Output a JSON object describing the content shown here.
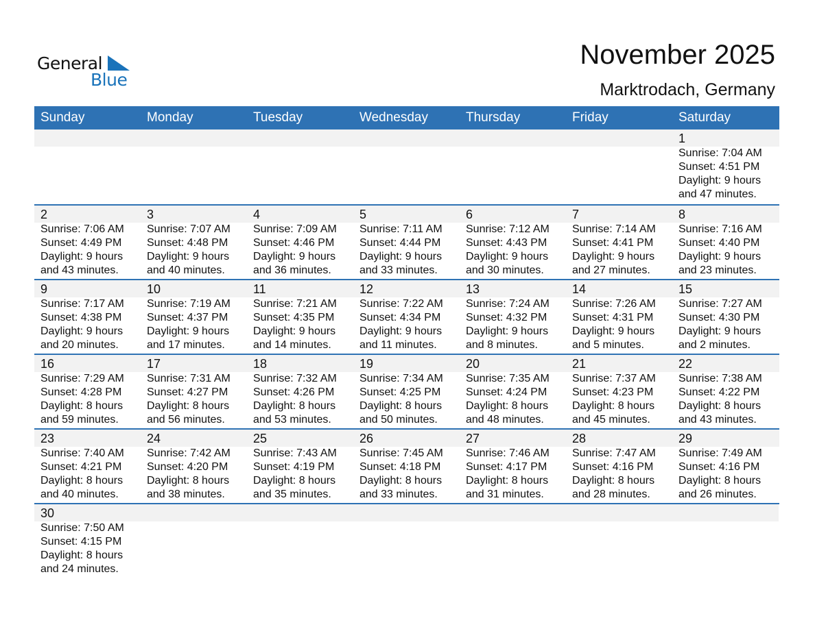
{
  "logo": {
    "text1": "General",
    "text2": "Blue",
    "color": "#1a73ba"
  },
  "title": "November 2025",
  "location": "Marktrodach, Germany",
  "weekdays": [
    "Sunday",
    "Monday",
    "Tuesday",
    "Wednesday",
    "Thursday",
    "Friday",
    "Saturday"
  ],
  "colors": {
    "header": "#2e72b4",
    "band": "#f2f2f2"
  },
  "first_weekday": 6,
  "days": [
    [
      "7:04 AM",
      "4:51 PM",
      "9 hours",
      "47 minutes."
    ],
    [
      "7:06 AM",
      "4:49 PM",
      "9 hours",
      "43 minutes."
    ],
    [
      "7:07 AM",
      "4:48 PM",
      "9 hours",
      "40 minutes."
    ],
    [
      "7:09 AM",
      "4:46 PM",
      "9 hours",
      "36 minutes."
    ],
    [
      "7:11 AM",
      "4:44 PM",
      "9 hours",
      "33 minutes."
    ],
    [
      "7:12 AM",
      "4:43 PM",
      "9 hours",
      "30 minutes."
    ],
    [
      "7:14 AM",
      "4:41 PM",
      "9 hours",
      "27 minutes."
    ],
    [
      "7:16 AM",
      "4:40 PM",
      "9 hours",
      "23 minutes."
    ],
    [
      "7:17 AM",
      "4:38 PM",
      "9 hours",
      "20 minutes."
    ],
    [
      "7:19 AM",
      "4:37 PM",
      "9 hours",
      "17 minutes."
    ],
    [
      "7:21 AM",
      "4:35 PM",
      "9 hours",
      "14 minutes."
    ],
    [
      "7:22 AM",
      "4:34 PM",
      "9 hours",
      "11 minutes."
    ],
    [
      "7:24 AM",
      "4:32 PM",
      "9 hours",
      "8 minutes."
    ],
    [
      "7:26 AM",
      "4:31 PM",
      "9 hours",
      "5 minutes."
    ],
    [
      "7:27 AM",
      "4:30 PM",
      "9 hours",
      "2 minutes."
    ],
    [
      "7:29 AM",
      "4:28 PM",
      "8 hours",
      "59 minutes."
    ],
    [
      "7:31 AM",
      "4:27 PM",
      "8 hours",
      "56 minutes."
    ],
    [
      "7:32 AM",
      "4:26 PM",
      "8 hours",
      "53 minutes."
    ],
    [
      "7:34 AM",
      "4:25 PM",
      "8 hours",
      "50 minutes."
    ],
    [
      "7:35 AM",
      "4:24 PM",
      "8 hours",
      "48 minutes."
    ],
    [
      "7:37 AM",
      "4:23 PM",
      "8 hours",
      "45 minutes."
    ],
    [
      "7:38 AM",
      "4:22 PM",
      "8 hours",
      "43 minutes."
    ],
    [
      "7:40 AM",
      "4:21 PM",
      "8 hours",
      "40 minutes."
    ],
    [
      "7:42 AM",
      "4:20 PM",
      "8 hours",
      "38 minutes."
    ],
    [
      "7:43 AM",
      "4:19 PM",
      "8 hours",
      "35 minutes."
    ],
    [
      "7:45 AM",
      "4:18 PM",
      "8 hours",
      "33 minutes."
    ],
    [
      "7:46 AM",
      "4:17 PM",
      "8 hours",
      "31 minutes."
    ],
    [
      "7:47 AM",
      "4:16 PM",
      "8 hours",
      "28 minutes."
    ],
    [
      "7:49 AM",
      "4:16 PM",
      "8 hours",
      "26 minutes."
    ],
    [
      "7:50 AM",
      "4:15 PM",
      "8 hours",
      "24 minutes."
    ]
  ]
}
